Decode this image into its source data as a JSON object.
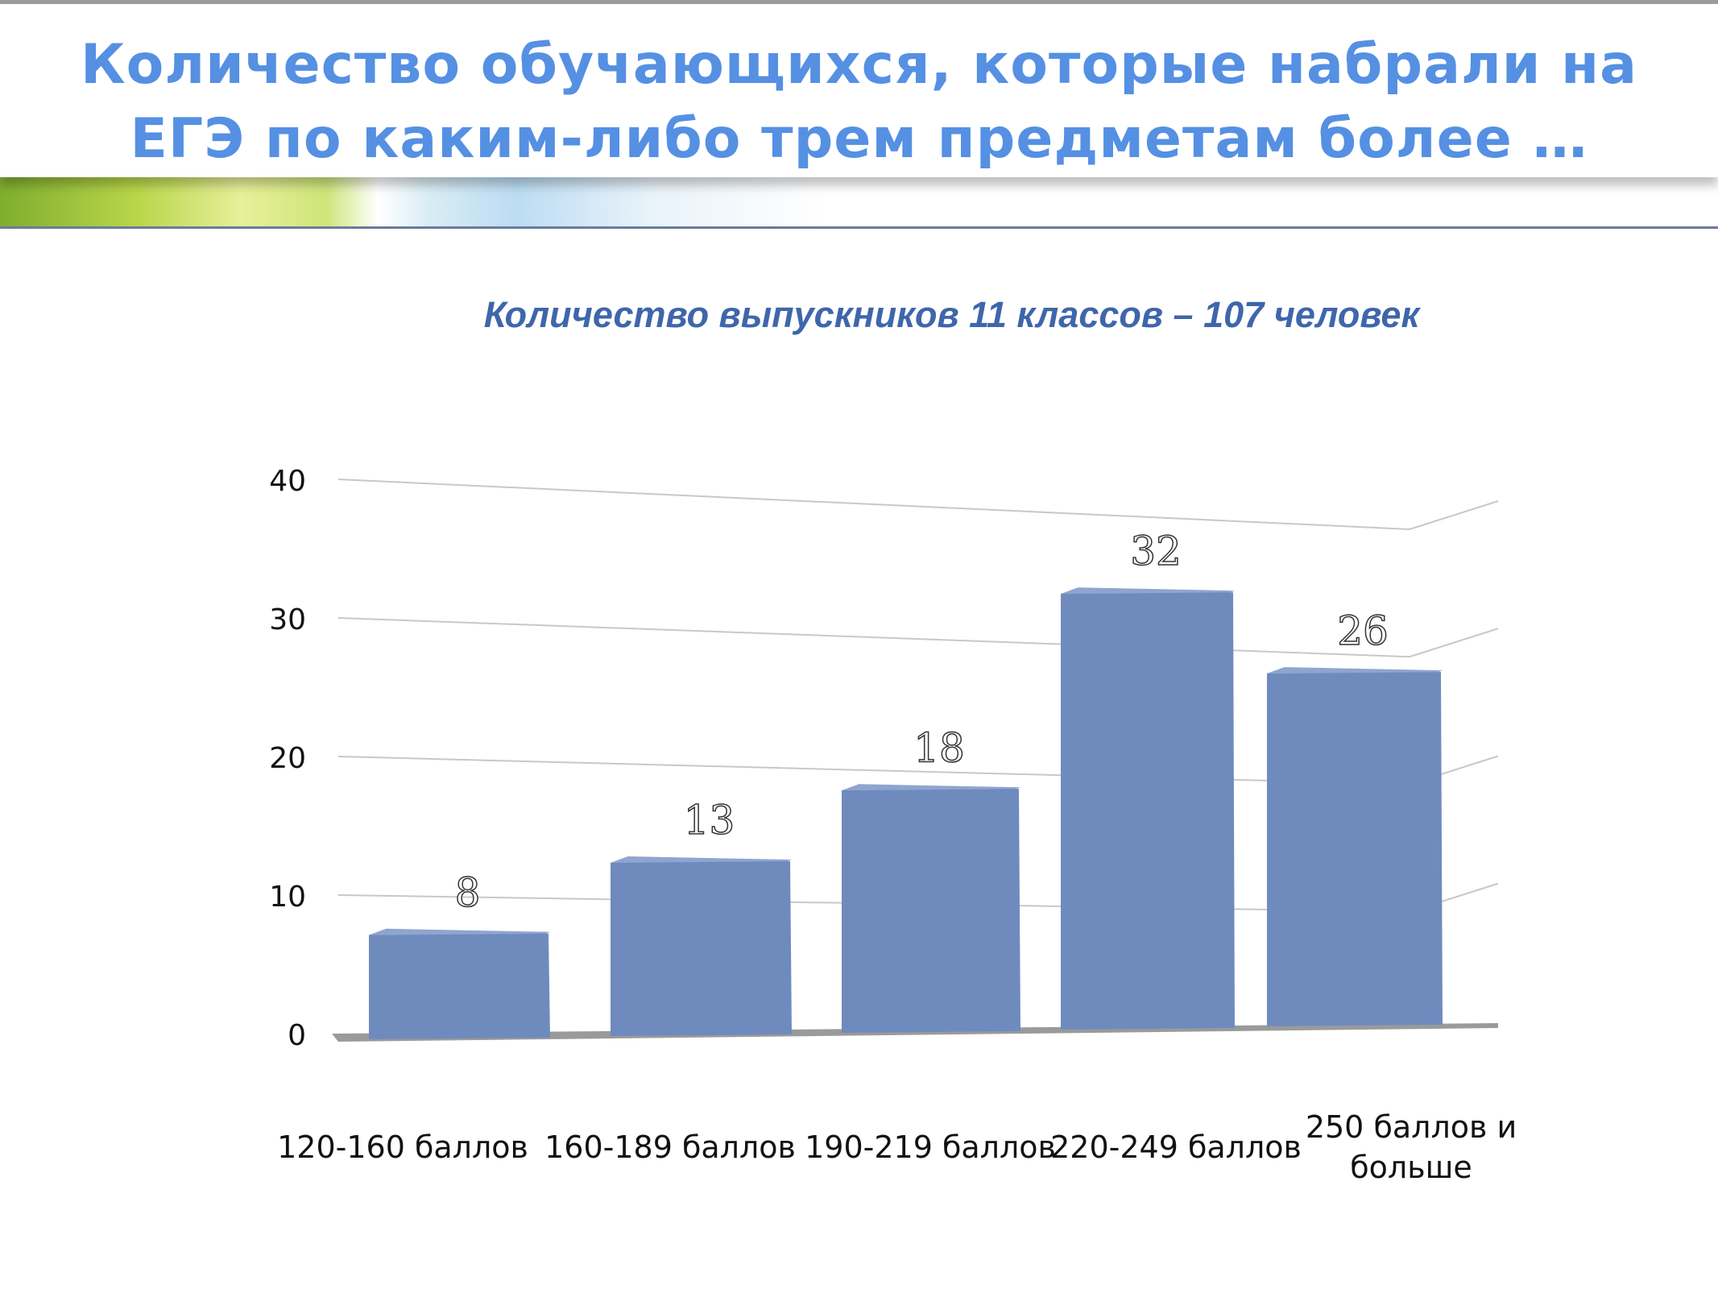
{
  "slide": {
    "title": "Количество обучающихся, которые набрали на ЕГЭ по каким-либо трем предметам более …",
    "subtitle": "Количество выпускников 11 классов – 107  человек"
  },
  "colors": {
    "title": "#5590e3",
    "subtitle": "#3f66ab",
    "bar_front": "#6f8bbd",
    "bar_side": "#4b5f86",
    "bar_top": "#8ea5cf"
  },
  "chart_data": {
    "type": "bar",
    "categories": [
      "120-160 баллов",
      "160-189 баллов",
      "190-219 баллов",
      "220-249 баллов",
      "250 баллов и больше"
    ],
    "values": [
      8,
      13,
      18,
      32,
      26
    ],
    "yticks": [
      "0",
      "10",
      "20",
      "30",
      "40"
    ],
    "ylim": [
      0,
      40
    ],
    "grid": true,
    "legend": "none",
    "data_labels": true
  }
}
